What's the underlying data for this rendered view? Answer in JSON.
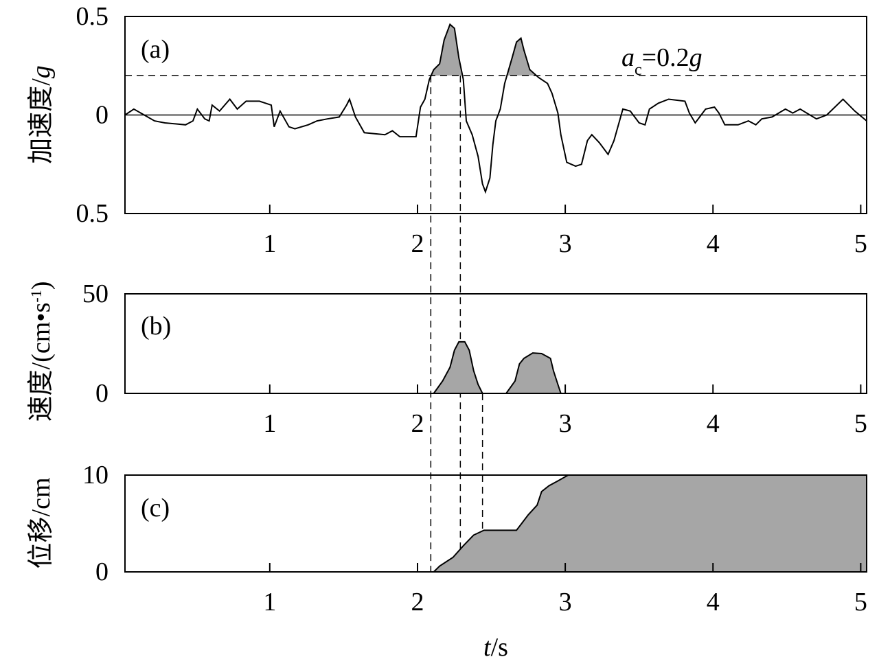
{
  "chart_data": [
    {
      "type": "line",
      "panel_label": "(a)",
      "ylabel": [
        "加速度/",
        "g"
      ],
      "xlim": [
        0.02,
        5.04
      ],
      "ylim": [
        -0.5,
        0.5
      ],
      "xticks": [
        1,
        2,
        3,
        4,
        5
      ],
      "yticks": [
        {
          "value": -0.5,
          "label": "0.5"
        },
        0,
        0.5
      ],
      "zero_line": true,
      "threshold": 0.2,
      "threshold_label": [
        "a",
        "c",
        "=0.2",
        "g"
      ],
      "shade": "above_threshold",
      "color": "#000000",
      "fill_color": "#a6a6a6",
      "vlines": [
        2.09,
        2.29
      ],
      "x": [
        0.02,
        0.08,
        0.15,
        0.22,
        0.29,
        0.43,
        0.48,
        0.51,
        0.56,
        0.59,
        0.61,
        0.66,
        0.73,
        0.78,
        0.84,
        0.93,
        1.01,
        1.03,
        1.07,
        1.13,
        1.17,
        1.26,
        1.32,
        1.39,
        1.47,
        1.52,
        1.54,
        1.58,
        1.64,
        1.78,
        1.83,
        1.88,
        1.99,
        2.02,
        2.05,
        2.08,
        2.11,
        2.15,
        2.18,
        2.22,
        2.25,
        2.28,
        2.31,
        2.33,
        2.37,
        2.41,
        2.44,
        2.46,
        2.49,
        2.51,
        2.53,
        2.56,
        2.59,
        2.64,
        2.67,
        2.7,
        2.72,
        2.76,
        2.82,
        2.88,
        2.91,
        2.95,
        2.97,
        3.01,
        3.07,
        3.11,
        3.15,
        3.18,
        3.23,
        3.29,
        3.33,
        3.39,
        3.44,
        3.5,
        3.54,
        3.57,
        3.63,
        3.7,
        3.81,
        3.84,
        3.88,
        3.95,
        4.01,
        4.04,
        4.08,
        4.17,
        4.24,
        4.29,
        4.33,
        4.4,
        4.49,
        4.54,
        4.59,
        4.7,
        4.77,
        4.88,
        4.96,
        5.04
      ],
      "values": [
        0,
        0.03,
        0,
        -0.03,
        -0.04,
        -0.05,
        -0.03,
        0.03,
        -0.02,
        -0.03,
        0.05,
        0.02,
        0.08,
        0.03,
        0.07,
        0.07,
        0.05,
        -0.06,
        0.02,
        -0.06,
        -0.07,
        -0.05,
        -0.03,
        -0.02,
        -0.01,
        0.05,
        0.08,
        -0.01,
        -0.09,
        -0.1,
        -0.08,
        -0.11,
        -0.11,
        0.04,
        0.08,
        0.18,
        0.23,
        0.26,
        0.38,
        0.46,
        0.44,
        0.29,
        0.18,
        -0.03,
        -0.1,
        -0.21,
        -0.35,
        -0.39,
        -0.32,
        -0.15,
        -0.03,
        0.03,
        0.16,
        0.29,
        0.37,
        0.39,
        0.33,
        0.23,
        0.19,
        0.16,
        0.11,
        0.01,
        -0.1,
        -0.24,
        -0.26,
        -0.25,
        -0.13,
        -0.1,
        -0.14,
        -0.2,
        -0.13,
        0.03,
        0.02,
        -0.04,
        -0.05,
        0.03,
        0.06,
        0.08,
        0.07,
        0.01,
        -0.04,
        0.03,
        0.04,
        0.01,
        -0.05,
        -0.05,
        -0.03,
        -0.05,
        -0.02,
        -0.01,
        0.03,
        0.01,
        0.03,
        -0.02,
        0,
        0.08,
        0.02,
        -0.03
      ]
    },
    {
      "type": "line",
      "panel_label": "(b)",
      "ylabel": [
        "速度/(cm•s",
        "-1",
        ")"
      ],
      "xlim": [
        0.02,
        5.04
      ],
      "ylim": [
        0,
        50
      ],
      "xticks": [
        1,
        2,
        3,
        4,
        5
      ],
      "yticks": [
        0,
        50
      ],
      "shade": "below_curve",
      "color": "#000000",
      "fill_color": "#a6a6a6",
      "vlines": [
        2.44
      ],
      "x": [
        0.02,
        2.11,
        2.17,
        2.22,
        2.25,
        2.28,
        2.32,
        2.35,
        2.38,
        2.41,
        2.44,
        2.6,
        2.66,
        2.69,
        2.72,
        2.78,
        2.84,
        2.9,
        2.92,
        2.95,
        2.97,
        5.04
      ],
      "values": [
        0,
        0,
        6.2,
        13.1,
        21.7,
        25.9,
        25.9,
        21.7,
        11.4,
        4.5,
        0,
        0,
        6.2,
        14.8,
        17.6,
        20.3,
        20.0,
        17.6,
        11.4,
        4.5,
        0,
        0
      ]
    },
    {
      "type": "line",
      "panel_label": "(c)",
      "ylabel": [
        "位移/cm"
      ],
      "xlabel": [
        "t",
        "/s"
      ],
      "xlim": [
        0.02,
        5.04
      ],
      "ylim": [
        0,
        10
      ],
      "xticks": [
        1,
        2,
        3,
        4,
        5
      ],
      "yticks": [
        0,
        10
      ],
      "shade": "below_curve",
      "color": "#000000",
      "fill_color": "#a6a6a6",
      "x": [
        0.02,
        2.11,
        2.15,
        2.24,
        2.31,
        2.38,
        2.45,
        2.67,
        2.75,
        2.81,
        2.84,
        2.89,
        2.95,
        3.02,
        5.04
      ],
      "values": [
        0,
        0,
        0.6,
        1.5,
        2.7,
        3.8,
        4.3,
        4.3,
        5.9,
        6.9,
        8.3,
        8.9,
        9.4,
        10,
        10
      ]
    }
  ]
}
